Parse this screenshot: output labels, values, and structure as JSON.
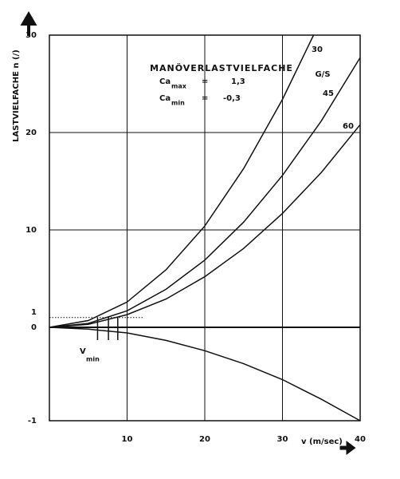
{
  "chart_data": {
    "type": "line",
    "title": "MANÖVERLASTVIELFACHE",
    "ylabel": "LASTVIELFACHE   n  (/)",
    "xlabel": "v (m/sec)",
    "parameters": [
      {
        "symbol": "Ca",
        "sub": "max",
        "sign": "=",
        "value": "1,3"
      },
      {
        "symbol": "Ca",
        "sub": "min",
        "sign": "=",
        "value": "-0,3"
      }
    ],
    "legend_title": "G/S",
    "series": [
      {
        "name": "30",
        "color": "#111111",
        "x": [
          0,
          5,
          10,
          15,
          20,
          25,
          30,
          34
        ],
        "values": [
          0,
          0.7,
          2.6,
          5.9,
          10.4,
          16.3,
          23.4,
          30
        ]
      },
      {
        "name": "45",
        "color": "#111111",
        "x": [
          0,
          5,
          10,
          15,
          20,
          25,
          30,
          35,
          40
        ],
        "values": [
          0,
          0.4,
          1.7,
          3.9,
          6.9,
          10.8,
          15.6,
          21.2,
          27.7
        ]
      },
      {
        "name": "60",
        "color": "#111111",
        "x": [
          0,
          5,
          10,
          15,
          20,
          25,
          30,
          35,
          40
        ],
        "values": [
          0,
          0.3,
          1.3,
          2.9,
          5.2,
          8.1,
          11.7,
          15.9,
          20.8
        ]
      },
      {
        "color": "#111111",
        "x": [
          0,
          5,
          10,
          15,
          20,
          25,
          30,
          35,
          40
        ],
        "values": [
          0,
          -0.02,
          -0.06,
          -0.14,
          -0.25,
          -0.39,
          -0.56,
          -0.77,
          -1
        ]
      }
    ],
    "vmin_label": {
      "main": "V",
      "sub": "min"
    },
    "vmin": [
      6.2,
      7.6,
      8.8
    ],
    "reference": {
      "y": 1,
      "x_end": 12
    },
    "xlim": [
      0,
      40
    ],
    "xticks": [
      10,
      20,
      30,
      40
    ],
    "ylim": [
      -1,
      30
    ],
    "yticks": [
      -1,
      0,
      10,
      20,
      30
    ],
    "grid": true
  }
}
